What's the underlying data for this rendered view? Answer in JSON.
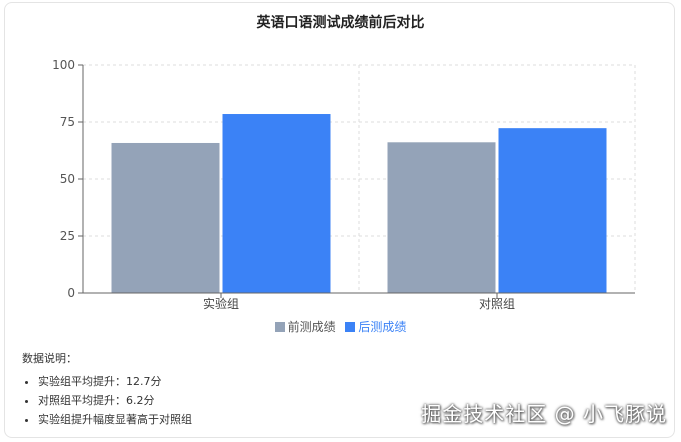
{
  "chart_data": {
    "type": "bar",
    "title": "英语口语测试成绩前后对比",
    "categories": [
      "实验组",
      "对照组"
    ],
    "series": [
      {
        "name": "前测成绩",
        "values": [
          65.8,
          66.1
        ],
        "color": "#94a3b8"
      },
      {
        "name": "后测成绩",
        "values": [
          78.5,
          72.3
        ],
        "color": "#3b82f6"
      }
    ],
    "ylim": [
      0,
      100
    ],
    "yticks": [
      0,
      25,
      50,
      75,
      100
    ],
    "grid": true,
    "legend": "bottom"
  },
  "notes": {
    "title": "数据说明：",
    "items": [
      "实验组平均提升：12.7分",
      "对照组平均提升：6.2分",
      "实验组提升幅度显著高于对照组"
    ]
  },
  "watermark": "掘金技术社区 @ 小飞豚说"
}
